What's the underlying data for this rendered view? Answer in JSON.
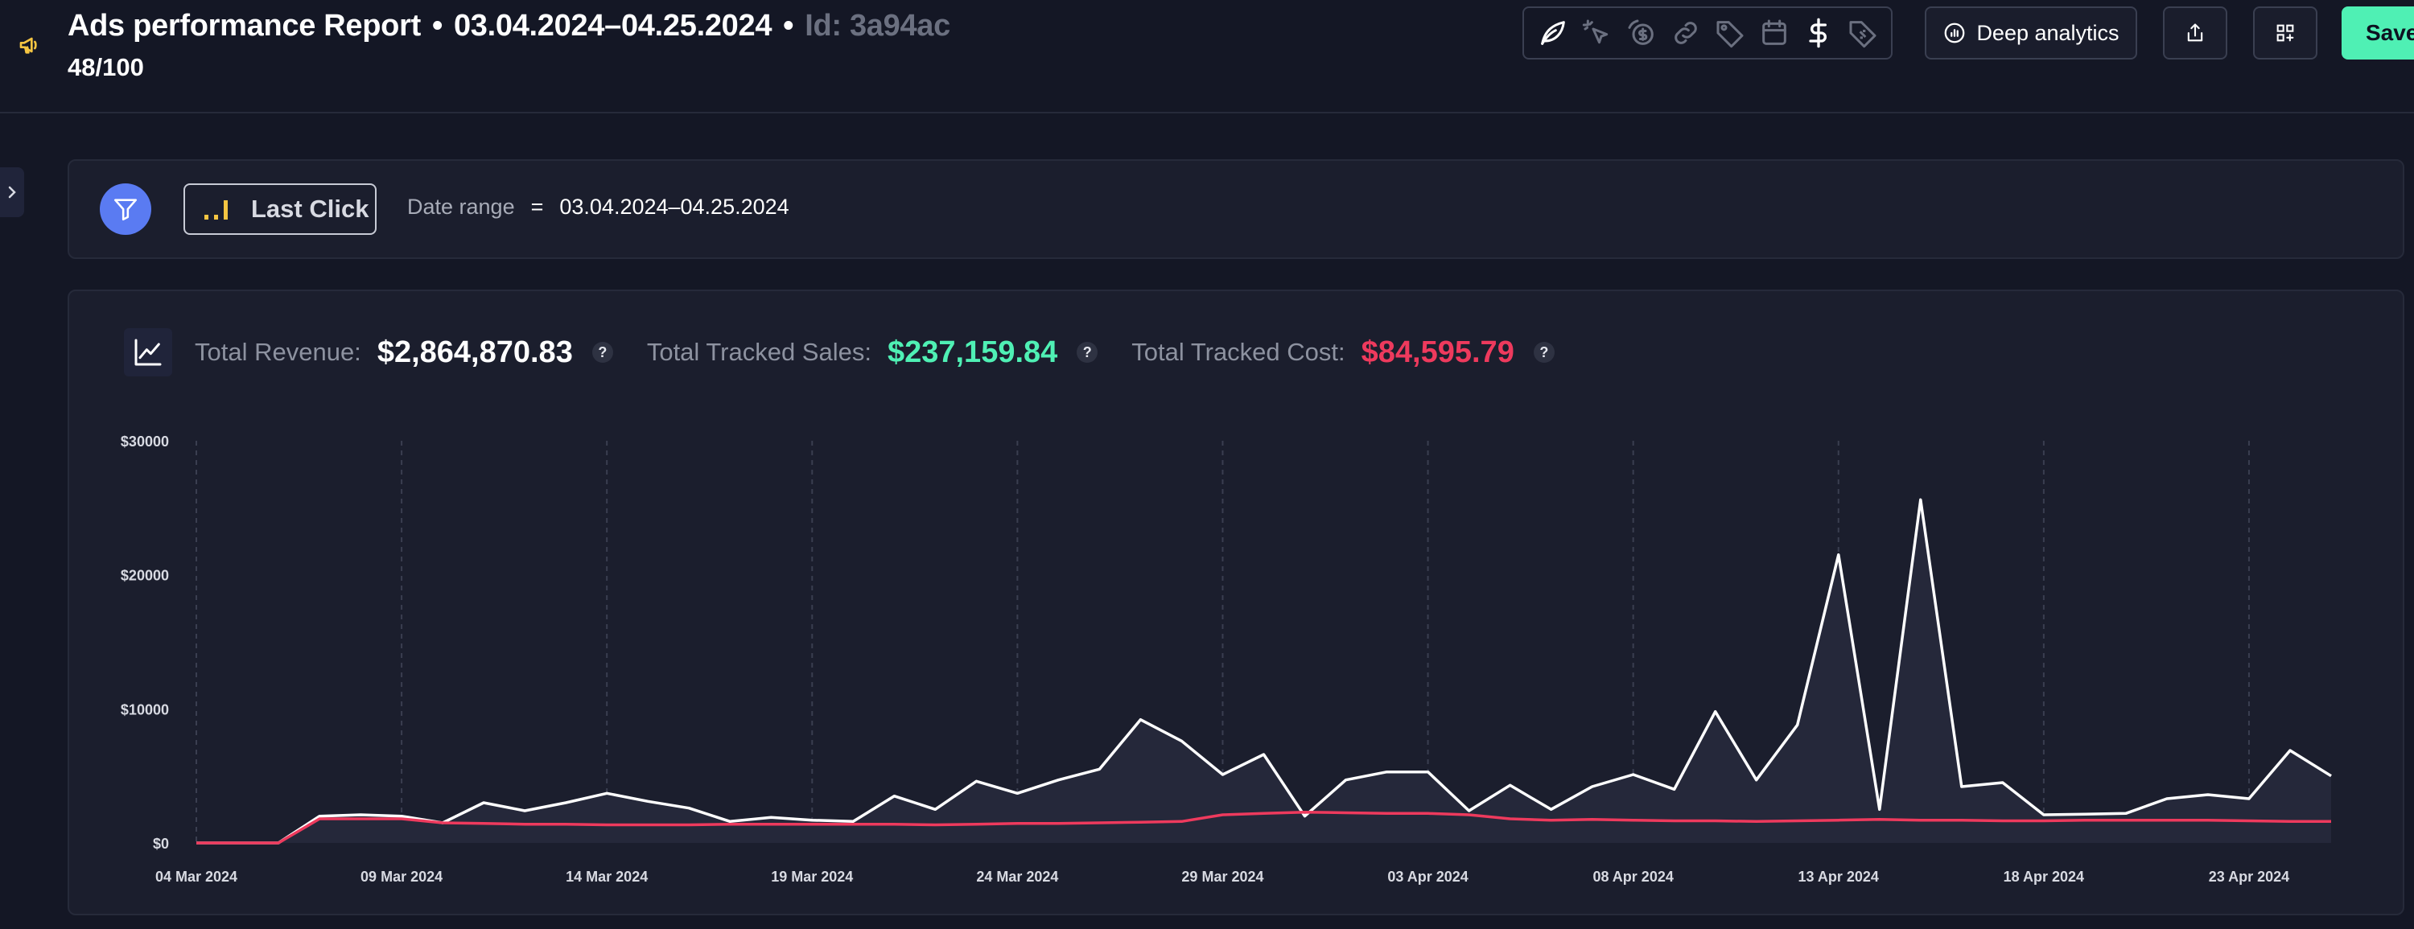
{
  "header": {
    "title": "Ads performance Report",
    "separator": "•",
    "date_range": "03.04.2024–04.25.2024",
    "report_id": "Id: 3a94ac",
    "score": "48/100",
    "icons": [
      "leaf-icon",
      "pointer-icon",
      "coin-refresh-icon",
      "link-icon",
      "tag-icon",
      "calendar-icon",
      "dollar-icon",
      "price-tag-icon"
    ],
    "deep_analytics_label": "Deep analytics",
    "save_label": "Save"
  },
  "filters": {
    "attribution": "Last Click",
    "date_label": "Date range",
    "operator": "=",
    "date_value": "03.04.2024–04.25.2024"
  },
  "metrics": [
    {
      "label": "Total Revenue:",
      "value": "$2,864,870.83",
      "help": "?",
      "color": "#ffffff"
    },
    {
      "label": "Total Tracked Sales:",
      "value": "$237,159.84",
      "help": "?",
      "color": "#4ff0b4"
    },
    {
      "label": "Total Tracked Cost:",
      "value": "$84,595.79",
      "help": "?",
      "color": "#ee3a5d"
    }
  ],
  "chart_data": {
    "type": "area",
    "x_start": "2024-03-04",
    "x_end": "2024-04-26",
    "xtick_labels": [
      "04 Mar 2024",
      "09 Mar 2024",
      "14 Mar 2024",
      "19 Mar 2024",
      "24 Mar 2024",
      "29 Mar 2024",
      "03 Apr 2024",
      "08 Apr 2024",
      "13 Apr 2024",
      "18 Apr 2024",
      "23 Apr 2024"
    ],
    "ytick_labels": [
      "$0",
      "$10000",
      "$20000",
      "$30000"
    ],
    "ylim": [
      0,
      30000
    ],
    "grid": "vertical dashed",
    "legend": "none",
    "series": [
      {
        "color": "#ffffff",
        "fill": "#25283a",
        "values": [
          0,
          0,
          0,
          2000,
          2100,
          2000,
          1500,
          3000,
          2400,
          3000,
          3700,
          3100,
          2600,
          1600,
          1900,
          1700,
          1600,
          3500,
          2500,
          4600,
          3700,
          4700,
          5500,
          9200,
          7600,
          5100,
          6600,
          2000,
          4700,
          5300,
          5300,
          2400,
          4300,
          2500,
          4200,
          5100,
          4000,
          9800,
          4700,
          8800,
          21500,
          2500,
          25600,
          4200,
          4500,
          2100,
          2150,
          2200,
          3300,
          3600,
          3300,
          6900,
          5000
        ]
      },
      {
        "color": "#ee3a5d",
        "values": [
          0,
          0,
          0,
          1800,
          1800,
          1800,
          1500,
          1450,
          1400,
          1400,
          1350,
          1350,
          1350,
          1400,
          1400,
          1400,
          1400,
          1400,
          1350,
          1400,
          1450,
          1450,
          1500,
          1550,
          1600,
          2100,
          2200,
          2300,
          2250,
          2200,
          2200,
          2100,
          1800,
          1700,
          1750,
          1700,
          1650,
          1650,
          1600,
          1650,
          1700,
          1750,
          1700,
          1700,
          1650,
          1650,
          1700,
          1700,
          1700,
          1700,
          1650,
          1600,
          1600
        ]
      }
    ]
  }
}
